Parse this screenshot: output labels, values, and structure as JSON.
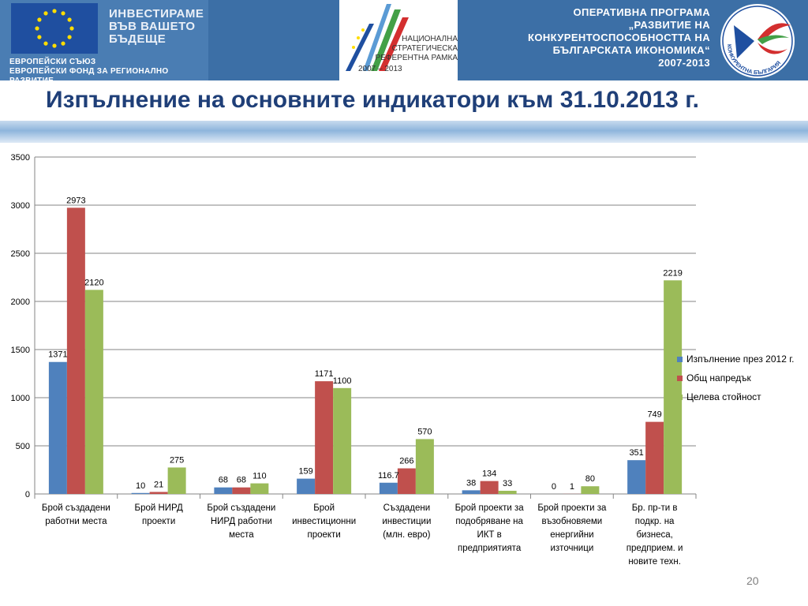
{
  "header": {
    "eu_slogan": "ИНВЕСТИРАМЕ\nВЪВ ВАШЕТО\nБЪДЕЩЕ",
    "eu_subtitle": "ЕВРОПЕЙСКИ СЪЮЗ\nЕВРОПЕЙСКИ ФОНД ЗА РЕГИОНАЛНО РАЗВИТИЕ",
    "nsrf_text": "НАЦИОНАЛНА\nСТРАТЕГИЧЕСКА\nРЕФЕРЕНТНА РАМКА",
    "nsrf_years": "2007 – 2013",
    "programme_text": "ОПЕРАТИВНА ПРОГРАМА\n„РАЗВИТИЕ НА\nКОНКУРЕНТОСПОСОБНОСТТА НА\nБЪЛГАРСКАТА ИКОНОМИКА“\n2007-2013",
    "logo_text": "КОНКУРЕНТНА БЪЛГАРИЯ",
    "colors": {
      "banner": "#3c6fa6",
      "eu_blue": "#1f4fa0",
      "eu_star": "#ffdd00"
    }
  },
  "slide": {
    "title": "Изпълнение на основните индикатори към 31.10.2013 г.",
    "page_number": "20"
  },
  "chart_data": {
    "type": "bar",
    "categories": [
      [
        "Брой създадени",
        "работни места"
      ],
      [
        "Брой НИРД",
        "проекти"
      ],
      [
        "Брой създадени",
        "НИРД работни",
        "места"
      ],
      [
        "Брой",
        "инвестиционни",
        "проекти"
      ],
      [
        "Създадени",
        "инвестиции",
        "(млн. евро)"
      ],
      [
        "Брой проекти за",
        "подобряване на",
        "ИКТ в",
        "предприятията"
      ],
      [
        "Брой проекти за",
        "възобновяеми",
        "енергийни",
        "източници"
      ],
      [
        "Бр. пр-ти в",
        "подкр. на",
        "бизнеса,",
        "предприем. и",
        "новите техн."
      ]
    ],
    "series": [
      {
        "name": "Изпълнение през 2012 г.",
        "color": "#4f81bd",
        "values": [
          1371,
          10,
          68,
          159,
          116.7,
          38,
          0,
          351
        ]
      },
      {
        "name": "Общ напредък",
        "color": "#c0504d",
        "values": [
          2973,
          21,
          68,
          1171,
          266,
          134,
          1,
          749
        ]
      },
      {
        "name": "Целева стойност",
        "color": "#9bbb59",
        "values": [
          2120,
          275,
          110,
          1100,
          570,
          33,
          80,
          2219
        ]
      }
    ],
    "ylim": [
      0,
      3500
    ],
    "yticks": [
      0,
      500,
      1000,
      1500,
      2000,
      2500,
      3000,
      3500
    ],
    "grid": true,
    "legend_position": "right"
  }
}
